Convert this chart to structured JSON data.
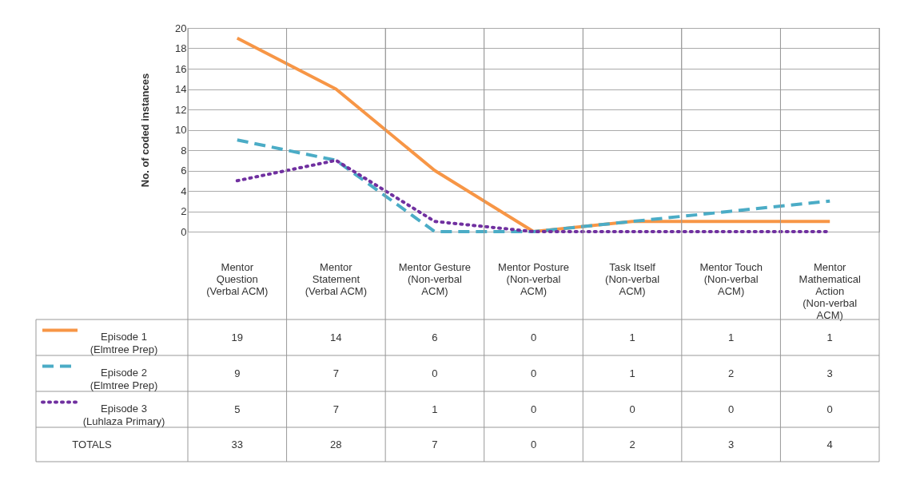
{
  "chart_data": {
    "type": "line",
    "ylabel": "No. of coded instances",
    "categories": [
      "Mentor Question (Verbal ACM)",
      "Mentor Statement (Verbal ACM)",
      "Mentor Gesture (Non-verbal ACM)",
      "Mentor Posture (Non-verbal ACM)",
      "Task Itself (Non-verbal ACM)",
      "Mentor Touch (Non-verbal ACM)",
      "Mentor Mathematical Action (Non-verbal ACM)"
    ],
    "series": [
      {
        "name": "Episode 1 (Elmtree Prep)",
        "color": "#f79646",
        "line_style": "solid",
        "values": [
          19,
          14,
          6,
          0,
          1,
          1,
          1
        ]
      },
      {
        "name": "Episode 2 (Elmtree Prep)",
        "color": "#4bacc6",
        "line_style": "dashed",
        "values": [
          9,
          7,
          0,
          0,
          1,
          2,
          3
        ]
      },
      {
        "name": "Episode 3 (Luhlaza Primary)",
        "color": "#7030a0",
        "line_style": "dotted",
        "values": [
          5,
          7,
          1,
          0,
          0,
          0,
          0
        ]
      }
    ],
    "ylim": [
      0,
      20
    ],
    "yticks": [
      0,
      2,
      4,
      6,
      8,
      10,
      12,
      14,
      16,
      18,
      20
    ],
    "grid": true,
    "legend": "bottom",
    "marker": "none",
    "data_labels": true,
    "totals": [
      "33",
      "28",
      "7",
      "0",
      "2",
      "3",
      "4"
    ],
    "annotations": [
      "TOTALS"
    ]
  }
}
